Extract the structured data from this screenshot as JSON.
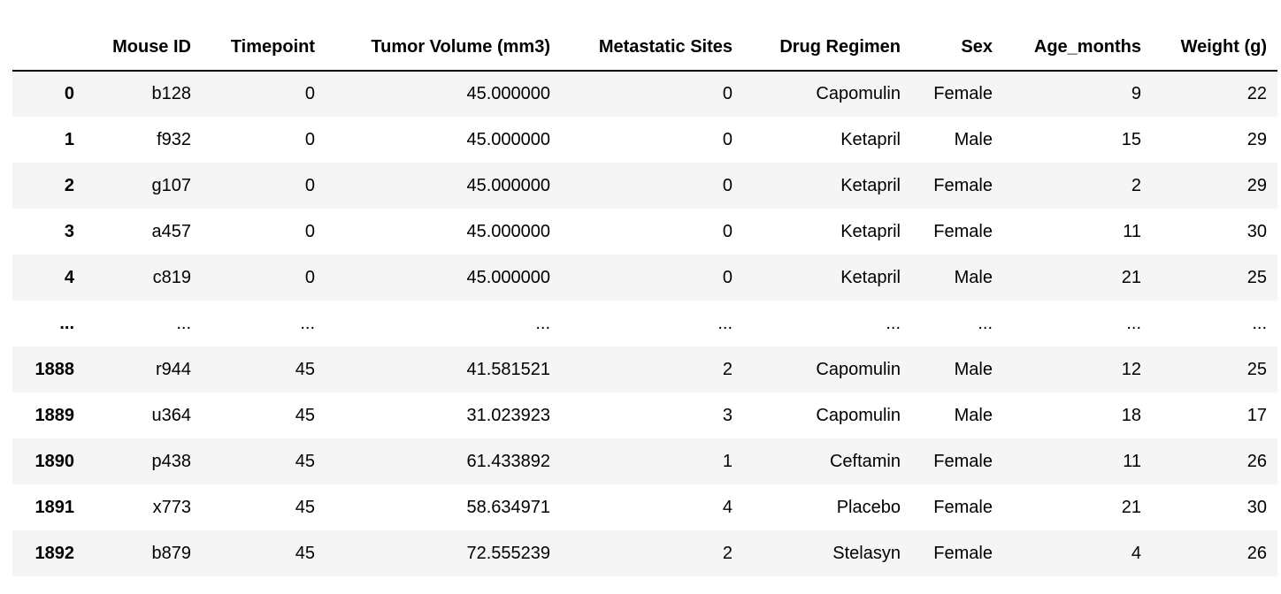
{
  "table": {
    "columns": [
      "",
      "Mouse ID",
      "Timepoint",
      "Tumor Volume (mm3)",
      "Metastatic Sites",
      "Drug Regimen",
      "Sex",
      "Age_months",
      "Weight (g)"
    ],
    "rows": [
      {
        "index": "0",
        "cells": [
          "b128",
          "0",
          "45.000000",
          "0",
          "Capomulin",
          "Female",
          "9",
          "22"
        ]
      },
      {
        "index": "1",
        "cells": [
          "f932",
          "0",
          "45.000000",
          "0",
          "Ketapril",
          "Male",
          "15",
          "29"
        ]
      },
      {
        "index": "2",
        "cells": [
          "g107",
          "0",
          "45.000000",
          "0",
          "Ketapril",
          "Female",
          "2",
          "29"
        ]
      },
      {
        "index": "3",
        "cells": [
          "a457",
          "0",
          "45.000000",
          "0",
          "Ketapril",
          "Female",
          "11",
          "30"
        ]
      },
      {
        "index": "4",
        "cells": [
          "c819",
          "0",
          "45.000000",
          "0",
          "Ketapril",
          "Male",
          "21",
          "25"
        ]
      },
      {
        "index": "...",
        "cells": [
          "...",
          "...",
          "...",
          "...",
          "...",
          "...",
          "...",
          "..."
        ]
      },
      {
        "index": "1888",
        "cells": [
          "r944",
          "45",
          "41.581521",
          "2",
          "Capomulin",
          "Male",
          "12",
          "25"
        ]
      },
      {
        "index": "1889",
        "cells": [
          "u364",
          "45",
          "31.023923",
          "3",
          "Capomulin",
          "Male",
          "18",
          "17"
        ]
      },
      {
        "index": "1890",
        "cells": [
          "p438",
          "45",
          "61.433892",
          "1",
          "Ceftamin",
          "Female",
          "11",
          "26"
        ]
      },
      {
        "index": "1891",
        "cells": [
          "x773",
          "45",
          "58.634971",
          "4",
          "Placebo",
          "Female",
          "21",
          "30"
        ]
      },
      {
        "index": "1892",
        "cells": [
          "b879",
          "45",
          "72.555239",
          "2",
          "Stelasyn",
          "Female",
          "4",
          "26"
        ]
      }
    ]
  },
  "colors": {
    "stripe": "#f5f5f5",
    "background": "#ffffff",
    "header_rule": "#000000"
  }
}
